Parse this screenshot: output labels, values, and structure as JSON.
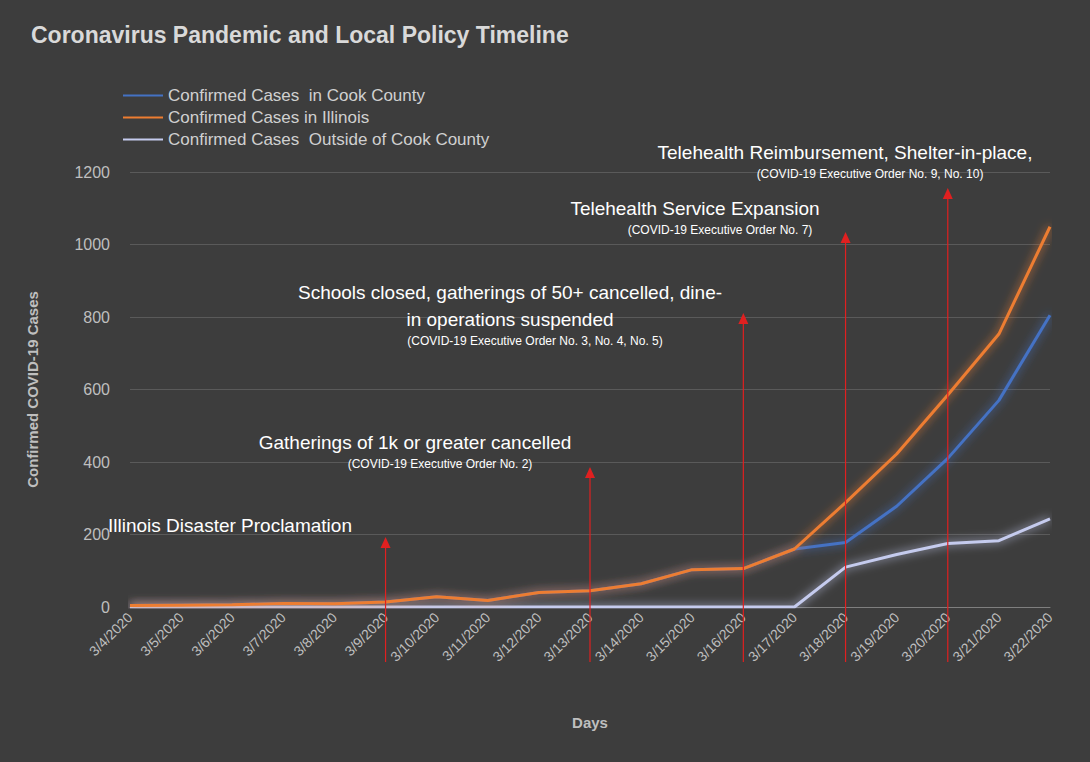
{
  "chart_data": {
    "type": "line",
    "title": "Coronavirus Pandemic and Local Policy Timeline",
    "x_label": "Days",
    "y_label": "Confirmed COVID-19 Cases",
    "categories": [
      "3/4/2020",
      "3/5/2020",
      "3/6/2020",
      "3/7/2020",
      "3/8/2020",
      "3/9/2020",
      "3/10/2020",
      "3/11/2020",
      "3/12/2020",
      "3/13/2020",
      "3/14/2020",
      "3/15/2020",
      "3/16/2020",
      "3/17/2020",
      "3/18/2020",
      "3/19/2020",
      "3/20/2020",
      "3/21/2020",
      "3/22/2020"
    ],
    "series": [
      {
        "name": "Confirmed Cases  in Cook County",
        "color": "#4472c4",
        "values": [
          4,
          5,
          6,
          10,
          9,
          14,
          28,
          18,
          40,
          45,
          64,
          103,
          106,
          160,
          178,
          278,
          410,
          570,
          805
        ]
      },
      {
        "name": "Confirmed Cases in Illinois",
        "color": "#ed7d31",
        "values": [
          4,
          5,
          6,
          10,
          9,
          14,
          28,
          18,
          40,
          45,
          64,
          103,
          106,
          160,
          288,
          422,
          585,
          753,
          1049
        ]
      },
      {
        "name": "Confirmed Cases  Outside of Cook County",
        "color": "#c5cbee",
        "values": [
          0,
          0,
          0,
          0,
          0,
          0,
          0,
          0,
          0,
          0,
          0,
          0,
          0,
          0,
          110,
          145,
          175,
          183,
          243
        ]
      }
    ],
    "ylim": [
      0,
      1200
    ],
    "yticks": [
      0,
      200,
      400,
      600,
      800,
      1000,
      1200
    ],
    "grid": true,
    "legend": "top-left",
    "annotations": [
      {
        "text": "Illinois Disaster Proclamation",
        "x": "3/9/2020"
      },
      {
        "text": "Gatherings of 1k or greater cancelled",
        "subtext": "(COVID-19 Executive Order No. 2)",
        "x": "3/13/2020"
      },
      {
        "text": "Schools closed, gatherings of 50+ cancelled, dine-\nin operations suspended",
        "subtext": "(COVID-19 Executive Order No. 3, No. 4, No. 5)",
        "x": "3/16/2020"
      },
      {
        "text": "Telehealth Service Expansion",
        "subtext": "(COVID-19 Executive Order No. 7)",
        "x": "3/18/2020"
      },
      {
        "text": "Telehealth Reimbursement, Shelter-in-place,",
        "subtext": "(COVID-19 Executive Order No. 9, No. 10)",
        "x": "3/20/2020"
      }
    ]
  }
}
